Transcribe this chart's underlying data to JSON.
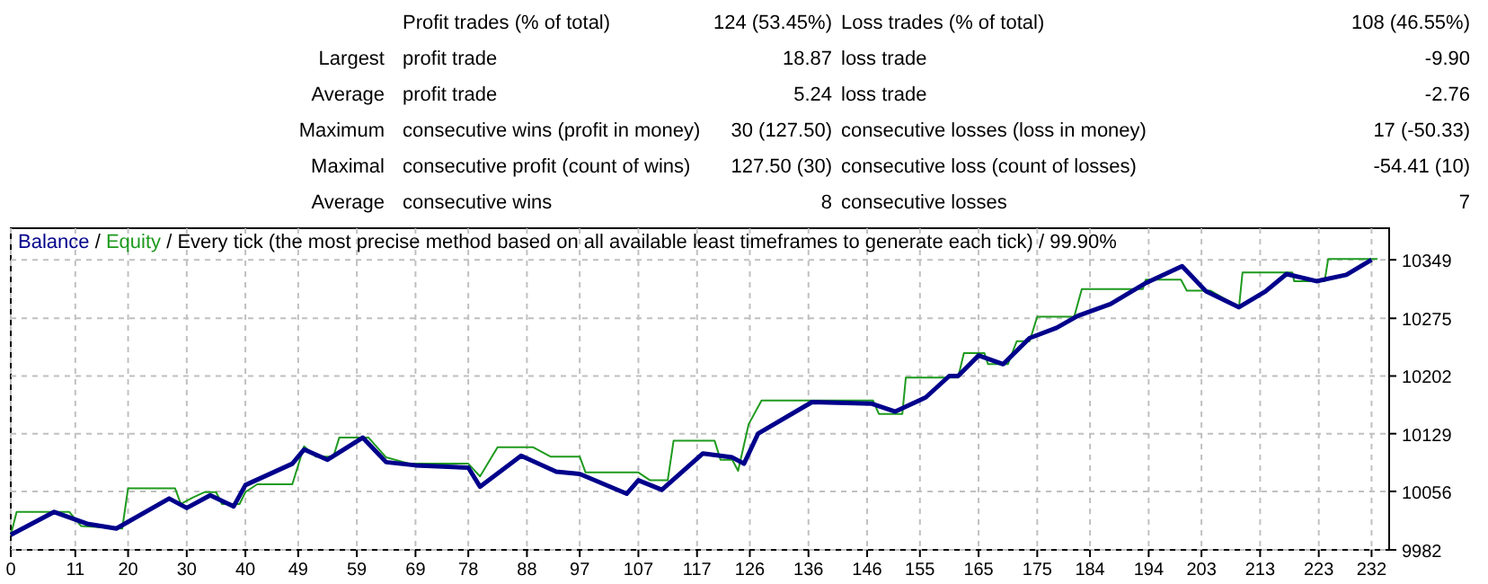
{
  "chart_data": [
    {
      "type": "other",
      "annotations": [
        "Profit trades (% of total)",
        "124 (53.45%)",
        "Loss trades (% of total)",
        "108 (46.55%)",
        "Largest",
        "profit trade",
        "18.87",
        "loss trade",
        "-9.90",
        "Average",
        "profit trade",
        "5.24",
        "loss trade",
        "-2.76",
        "Maximum",
        "consecutive wins (profit in money)",
        "30 (127.50)",
        "consecutive losses (loss in money)",
        "17 (-50.33)",
        "Maximal",
        "consecutive profit (count of wins)",
        "127.50 (30)",
        "consecutive loss (count of losses)",
        "-54.41 (10)",
        "Average",
        "consecutive wins",
        "8",
        "consecutive losses",
        "7"
      ]
    },
    {
      "type": "line",
      "title": "Every tick (the most precise method based on all available least timeframes to generate each tick) / 99.90%",
      "legend_title": "/",
      "xlim": [
        0,
        235
      ],
      "xticks": [
        0,
        11,
        20,
        30,
        40,
        49,
        59,
        69,
        78,
        88,
        97,
        107,
        117,
        126,
        136,
        146,
        155,
        165,
        175,
        184,
        194,
        203,
        213,
        223,
        232
      ],
      "ylim": [
        9982,
        10389
      ],
      "yticks": [
        9982,
        10056,
        10129,
        10202,
        10275,
        10349
      ],
      "grid": true,
      "legend": "top left",
      "line_style": "solid",
      "marker": "none",
      "series": [
        {
          "name": "Equity",
          "color": "#1e9a1e",
          "x": [
            0,
            1,
            10,
            12,
            19,
            20,
            28,
            29,
            31,
            33,
            35,
            36,
            39,
            40,
            42,
            48,
            50,
            52,
            55,
            56,
            61,
            64,
            68,
            78,
            80,
            83,
            89,
            92,
            97,
            98,
            107,
            109,
            112,
            113,
            120,
            121,
            123,
            124,
            125.8,
            128,
            147,
            148,
            152,
            152.6,
            161.5,
            162.5,
            166,
            166.6,
            170,
            171.5,
            173.7,
            175,
            181.3,
            182.6,
            193,
            193.5,
            199.5,
            200.5,
            204.5,
            209.4,
            210,
            218.5,
            218.8,
            224,
            224.6,
            233
          ],
          "values": [
            10001,
            10030,
            10030,
            10012,
            10009,
            10060,
            10060,
            10040,
            10048,
            10055,
            10055,
            10040,
            10040,
            10055,
            10065,
            10065,
            10113,
            10100,
            10100,
            10124,
            10124,
            10099,
            10091,
            10091,
            10075,
            10112,
            10112,
            10100,
            10100,
            10080,
            10080,
            10070,
            10070,
            10120,
            10120,
            10096,
            10096,
            10082,
            10141,
            10171,
            10171,
            10154,
            10154,
            10200,
            10200,
            10231,
            10231,
            10217,
            10217,
            10246,
            10246,
            10277,
            10277,
            10312,
            10312,
            10324,
            10324,
            10310,
            10310,
            10289,
            10333,
            10333,
            10322,
            10322,
            10350,
            10350
          ]
        },
        {
          "name": "Balance",
          "color": "#00008b",
          "x": [
            0,
            7.4,
            13,
            18,
            27,
            30,
            34,
            38,
            40,
            48,
            50,
            54,
            60,
            64,
            69,
            78,
            80,
            87,
            93,
            97,
            105,
            107,
            111,
            118,
            123,
            125,
            127.4,
            136.6,
            146.8,
            150.8,
            156,
            160,
            161.5,
            165,
            169.2,
            173.7,
            178.3,
            181.9,
            187.5,
            193.6,
            199.7,
            203.8,
            209.4,
            213.9,
            217.5,
            222.6,
            227.7,
            232
          ],
          "values": [
            10001,
            10030,
            10015,
            10009,
            10047,
            10035,
            10051,
            10037,
            10064,
            10091,
            10109,
            10096,
            10124,
            10093,
            10089,
            10086,
            10062,
            10101,
            10081,
            10078,
            10053,
            10070,
            10058,
            10104,
            10099,
            10091,
            10129,
            10169,
            10167,
            10157,
            10175,
            10202,
            10202,
            10228,
            10217,
            10250,
            10263,
            10278,
            10293,
            10320,
            10341,
            10309,
            10289,
            10309,
            10331,
            10322,
            10330,
            10349
          ]
        }
      ]
    }
  ]
}
